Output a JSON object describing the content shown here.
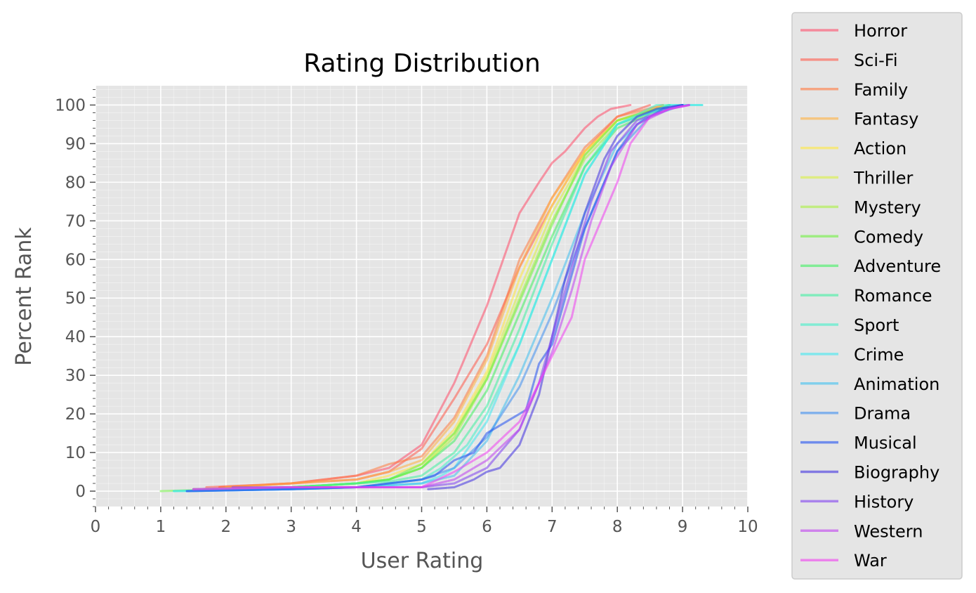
{
  "colors": {
    "figure_bg": "#ffffff",
    "plot_bg": "#e5e5e5",
    "grid_major": "#ffffff",
    "tick": "#555555",
    "legend_bg": "#e5e5e5",
    "legend_border": "#cccccc"
  },
  "chart_data": {
    "type": "line",
    "title": "Rating Distribution",
    "xlabel": "User Rating",
    "ylabel": "Percent Rank",
    "xlim": [
      0,
      10
    ],
    "ylim": [
      -4,
      105
    ],
    "xticks": [
      0,
      1,
      2,
      3,
      4,
      5,
      6,
      7,
      8,
      9,
      10
    ],
    "yticks": [
      0,
      10,
      20,
      30,
      40,
      50,
      60,
      70,
      80,
      90,
      100
    ],
    "grid": true,
    "minor_grid": true,
    "line_alpha": 0.55,
    "legend_placement": "outside-right",
    "series": [
      {
        "name": "Horror",
        "color": "#ff4d6a",
        "x": [
          1.9,
          3.0,
          4.0,
          4.5,
          5.0,
          5.5,
          6.0,
          6.5,
          6.8,
          7.0,
          7.2,
          7.5,
          7.7,
          7.9,
          8.2
        ],
        "y": [
          1,
          2,
          4,
          6,
          12,
          28,
          48,
          72,
          80,
          85,
          88,
          94,
          97,
          99,
          100
        ]
      },
      {
        "name": "Sci-Fi",
        "color": "#ff5a4a",
        "x": [
          1.7,
          3.0,
          4.0,
          4.5,
          5.0,
          5.5,
          6.0,
          6.5,
          7.0,
          7.5,
          8.0,
          8.5
        ],
        "y": [
          1,
          2,
          3,
          5,
          11,
          24,
          38,
          58,
          74,
          88,
          97,
          100
        ]
      },
      {
        "name": "Family",
        "color": "#ff7a40",
        "x": [
          1.9,
          3.0,
          4.0,
          4.5,
          5.0,
          5.5,
          6.0,
          6.5,
          7.0,
          7.5,
          8.0,
          8.7
        ],
        "y": [
          1,
          2,
          4,
          7,
          9,
          19,
          35,
          60,
          76,
          89,
          97,
          100
        ]
      },
      {
        "name": "Fantasy",
        "color": "#ffb040",
        "x": [
          2.0,
          3.0,
          4.0,
          4.5,
          5.0,
          5.5,
          6.0,
          6.5,
          7.0,
          7.5,
          8.0,
          8.7
        ],
        "y": [
          1,
          2,
          3,
          5,
          8,
          18,
          34,
          58,
          76,
          88,
          96,
          100
        ]
      },
      {
        "name": "Action",
        "color": "#ffe840",
        "x": [
          1.5,
          3.0,
          4.0,
          4.5,
          5.0,
          5.5,
          6.0,
          6.5,
          7.0,
          7.5,
          8.0,
          8.8
        ],
        "y": [
          0.5,
          1,
          2,
          4,
          7,
          16,
          31,
          55,
          74,
          88,
          96,
          100
        ]
      },
      {
        "name": "Thriller",
        "color": "#d8f040",
        "x": [
          1.5,
          3.0,
          4.0,
          4.5,
          5.0,
          5.5,
          6.0,
          6.5,
          7.0,
          7.5,
          8.0,
          8.8
        ],
        "y": [
          0.5,
          1,
          2,
          3,
          6,
          15,
          30,
          52,
          72,
          87,
          96,
          100
        ]
      },
      {
        "name": "Mystery",
        "color": "#a8f040",
        "x": [
          1.5,
          3.0,
          4.0,
          4.5,
          5.0,
          5.5,
          6.0,
          6.5,
          7.0,
          7.5,
          8.0,
          8.8
        ],
        "y": [
          0.5,
          1,
          2,
          3,
          6,
          14,
          29,
          50,
          70,
          86,
          95,
          100
        ]
      },
      {
        "name": "Comedy",
        "color": "#70f040",
        "x": [
          1.0,
          2.0,
          3.0,
          4.0,
          4.5,
          5.0,
          5.5,
          6.0,
          6.5,
          7.0,
          7.5,
          8.0,
          8.8
        ],
        "y": [
          0,
          0.5,
          1,
          2,
          3,
          7,
          15,
          29,
          49,
          69,
          87,
          96,
          100
        ]
      },
      {
        "name": "Adventure",
        "color": "#40f060",
        "x": [
          1.5,
          3.0,
          4.0,
          4.5,
          5.0,
          5.5,
          6.0,
          6.5,
          7.0,
          7.5,
          8.0,
          8.8
        ],
        "y": [
          0.5,
          1,
          2,
          3,
          6,
          13,
          26,
          46,
          66,
          84,
          94,
          100
        ]
      },
      {
        "name": "Romance",
        "color": "#40f0a0",
        "x": [
          1.5,
          3.0,
          4.0,
          4.5,
          5.0,
          5.5,
          6.0,
          6.5,
          7.0,
          7.5,
          8.0,
          8.8
        ],
        "y": [
          0.5,
          1,
          2,
          2.5,
          4,
          10,
          22,
          42,
          64,
          84,
          95,
          100
        ]
      },
      {
        "name": "Sport",
        "color": "#40f0c8",
        "x": [
          1.2,
          3.0,
          4.0,
          5.0,
          5.3,
          5.5,
          5.7,
          6.0,
          6.5,
          7.0,
          7.5,
          8.0,
          8.6,
          9.3
        ],
        "y": [
          0,
          0.5,
          1,
          3,
          6,
          9,
          12,
          20,
          38,
          60,
          82,
          95,
          100,
          100
        ]
      },
      {
        "name": "Crime",
        "color": "#40e8f0",
        "x": [
          1.2,
          3.0,
          4.0,
          5.0,
          5.3,
          5.5,
          6.0,
          6.5,
          7.0,
          7.5,
          8.0,
          8.8,
          9.3
        ],
        "y": [
          0,
          0.5,
          1,
          2,
          4,
          6,
          18,
          38,
          60,
          82,
          95,
          100,
          100
        ]
      },
      {
        "name": "Animation",
        "color": "#40c0f0",
        "x": [
          1.4,
          3.0,
          4.0,
          5.0,
          5.5,
          6.0,
          6.5,
          7.0,
          7.5,
          8.0,
          8.5,
          9.0
        ],
        "y": [
          0,
          0.5,
          1,
          2,
          4,
          13,
          30,
          50,
          72,
          90,
          98,
          100
        ]
      },
      {
        "name": "Drama",
        "color": "#4090f0",
        "x": [
          1.4,
          3.0,
          4.0,
          5.0,
          5.5,
          6.0,
          6.5,
          7.0,
          7.5,
          8.0,
          8.5,
          9.0
        ],
        "y": [
          0,
          0.5,
          1,
          3,
          6,
          14,
          27,
          46,
          68,
          88,
          97,
          100
        ]
      },
      {
        "name": "Musical",
        "color": "#2050f0",
        "x": [
          1.4,
          3.0,
          4.0,
          5.0,
          5.2,
          5.5,
          5.8,
          6.0,
          6.3,
          6.6,
          6.8,
          7.0,
          7.2,
          7.5,
          7.8,
          8.0,
          8.3,
          8.7,
          9.0
        ],
        "y": [
          0,
          0.5,
          1,
          3,
          4,
          8,
          10,
          15,
          18,
          21,
          33,
          38,
          50,
          68,
          80,
          88,
          95,
          99,
          100
        ]
      },
      {
        "name": "Biography",
        "color": "#4030e0",
        "x": [
          5.1,
          5.5,
          5.8,
          6.0,
          6.2,
          6.5,
          6.8,
          7.0,
          7.2,
          7.5,
          7.8,
          8.0,
          8.3,
          8.6,
          9.0
        ],
        "y": [
          0.5,
          1,
          3,
          5,
          6,
          12,
          25,
          40,
          55,
          72,
          86,
          92,
          97,
          99,
          100
        ]
      },
      {
        "name": "History",
        "color": "#8040f0",
        "x": [
          2.1,
          3.0,
          4.0,
          5.0,
          5.5,
          6.0,
          6.5,
          6.8,
          7.0,
          7.3,
          7.6,
          7.9,
          8.3,
          8.8,
          9.1
        ],
        "y": [
          1,
          1,
          1,
          1,
          2,
          6,
          16,
          28,
          40,
          58,
          75,
          88,
          96,
          99,
          100
        ]
      },
      {
        "name": "Western",
        "color": "#c040f0",
        "x": [
          1.5,
          3.0,
          4.0,
          5.0,
          5.5,
          6.0,
          6.5,
          6.8,
          7.0,
          7.3,
          7.6,
          7.9,
          8.3,
          8.8,
          9.1
        ],
        "y": [
          0.5,
          1,
          1,
          1,
          3,
          8,
          16,
          28,
          36,
          52,
          70,
          84,
          95,
          99,
          100
        ]
      },
      {
        "name": "War",
        "color": "#f040f0",
        "x": [
          1.5,
          3.0,
          4.0,
          5.0,
          5.5,
          6.0,
          6.5,
          6.8,
          7.0,
          7.3,
          7.5,
          7.8,
          8.0,
          8.2,
          8.5,
          8.8,
          9.1
        ],
        "y": [
          0.5,
          1,
          1,
          1,
          5,
          10,
          18,
          28,
          35,
          45,
          60,
          72,
          80,
          90,
          97,
          99,
          100
        ]
      }
    ]
  }
}
